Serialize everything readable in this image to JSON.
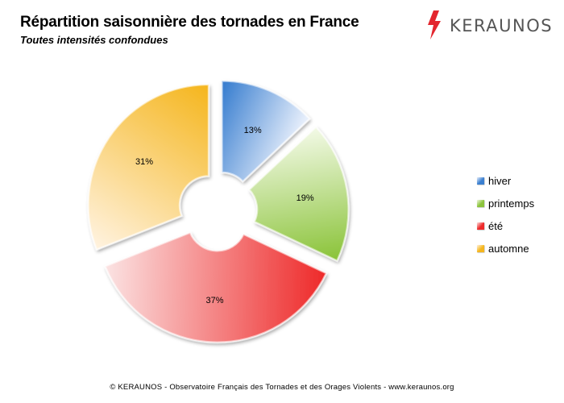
{
  "header": {
    "title": "Répartition saisonnière des tornades en France",
    "subtitle": "Toutes intensités confondues"
  },
  "logo": {
    "text": "KERAUNOS"
  },
  "footer": {
    "text": "© KERAUNOS - Observatoire Français des Tornades et des Orages Violents - www.keraunos.org"
  },
  "chart_data": {
    "type": "pie",
    "title": "Répartition saisonnière des tornades en France",
    "subtitle": "Toutes intensités confondues",
    "categories": [
      "hiver",
      "printemps",
      "été",
      "automne"
    ],
    "values": [
      13,
      19,
      37,
      31
    ],
    "labels": [
      "13%",
      "19%",
      "37%",
      "31%"
    ],
    "unit": "%",
    "style": "exploded doughnut",
    "legend": "right",
    "colors": [
      "#3a7fd0",
      "#8cc43c",
      "#ee2a2a",
      "#f5b61e"
    ]
  }
}
